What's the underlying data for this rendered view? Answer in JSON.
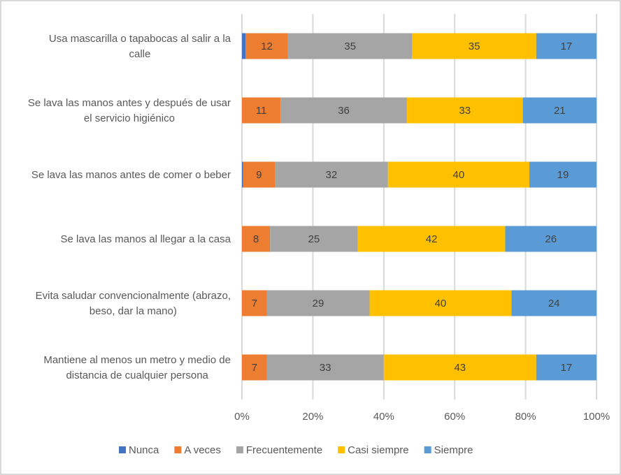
{
  "chart_data": {
    "type": "bar",
    "orientation": "horizontal",
    "stacked": "percent",
    "title": "",
    "xlabel": "",
    "ylabel": "",
    "xlim": [
      0,
      100
    ],
    "x_ticks": [
      "0%",
      "20%",
      "40%",
      "60%",
      "80%",
      "100%"
    ],
    "grid": true,
    "legend_position": "bottom",
    "categories": [
      [
        "Usa mascarilla o tapabocas al salir a la",
        "calle"
      ],
      [
        "Se lava las manos antes y después de usar",
        "el servicio higiénico"
      ],
      [
        "Se lava las manos antes de comer o beber"
      ],
      [
        "Se lava las manos al llegar a la casa"
      ],
      [
        "Evita saludar convencionalmente (abrazo,",
        "beso, dar la mano)"
      ],
      [
        "Mantiene al menos un metro y medio de",
        "distancia de cualquier persona"
      ]
    ],
    "series": [
      {
        "name": "Nunca",
        "color": "#4472c4",
        "values": [
          1,
          0,
          0.3,
          0,
          0,
          0
        ],
        "labels": [
          "",
          "",
          "",
          "",
          "",
          ""
        ]
      },
      {
        "name": "A veces",
        "color": "#ed7d31",
        "values": [
          12,
          11,
          9,
          8,
          7,
          7
        ],
        "labels": [
          "12",
          "11",
          "9",
          "8",
          "7",
          "7"
        ]
      },
      {
        "name": "Frecuentemente",
        "color": "#a5a5a5",
        "values": [
          35,
          36,
          32,
          25,
          29,
          33
        ],
        "labels": [
          "35",
          "36",
          "32",
          "25",
          "29",
          "33"
        ]
      },
      {
        "name": "Casi siempre",
        "color": "#ffc000",
        "values": [
          35,
          33,
          40,
          42,
          40,
          43
        ],
        "labels": [
          "35",
          "33",
          "40",
          "42",
          "40",
          "43"
        ]
      },
      {
        "name": "Siempre",
        "color": "#5b9bd5",
        "values": [
          17,
          21,
          19,
          26,
          24,
          17
        ],
        "labels": [
          "17",
          "21",
          "19",
          "26",
          "24",
          "17"
        ]
      }
    ]
  }
}
